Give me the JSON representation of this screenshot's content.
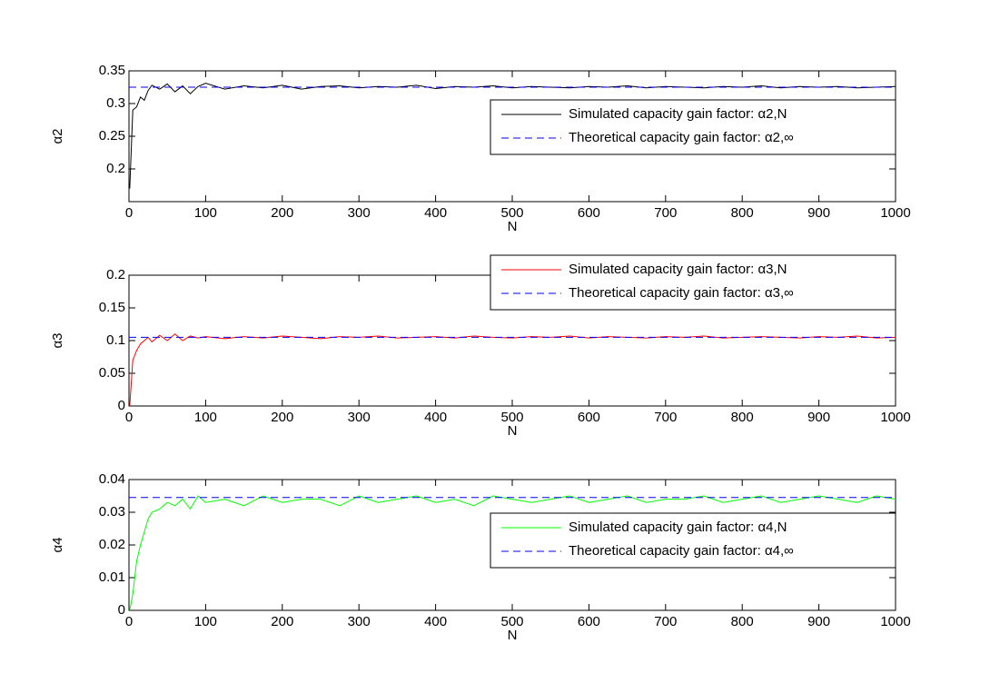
{
  "chart_data": [
    {
      "type": "line",
      "ylabel": "α2",
      "xlabel": "N",
      "legend": "upper right",
      "x": [
        1,
        5,
        10,
        15,
        20,
        25,
        30,
        40,
        50,
        60,
        70,
        80,
        90,
        100,
        125,
        150,
        175,
        200,
        225,
        250,
        275,
        300,
        325,
        350,
        375,
        400,
        425,
        450,
        475,
        500,
        525,
        550,
        575,
        600,
        625,
        650,
        675,
        700,
        725,
        750,
        775,
        800,
        825,
        850,
        875,
        900,
        925,
        950,
        975,
        1000
      ],
      "xlim": [
        0,
        1000
      ],
      "xticks": [
        0,
        100,
        200,
        300,
        400,
        500,
        600,
        700,
        800,
        900,
        1000
      ],
      "ylim": [
        0.15,
        0.35
      ],
      "yticks": [
        0.2,
        0.25,
        0.3,
        0.35
      ],
      "series": [
        {
          "name": "Simulated capacity gain factor: α2,N",
          "color": "#000000",
          "dash": false,
          "values": [
            0.17,
            0.29,
            0.295,
            0.31,
            0.305,
            0.32,
            0.328,
            0.322,
            0.33,
            0.318,
            0.327,
            0.315,
            0.326,
            0.331,
            0.322,
            0.327,
            0.324,
            0.328,
            0.322,
            0.326,
            0.327,
            0.324,
            0.326,
            0.325,
            0.328,
            0.323,
            0.326,
            0.325,
            0.327,
            0.324,
            0.326,
            0.325,
            0.324,
            0.326,
            0.325,
            0.327,
            0.324,
            0.326,
            0.325,
            0.324,
            0.326,
            0.325,
            0.327,
            0.324,
            0.326,
            0.325,
            0.326,
            0.324,
            0.325,
            0.326
          ]
        },
        {
          "name": "Theoretical capacity gain factor: α2,∞",
          "color": "#0000ff",
          "dash": true,
          "x": [
            0,
            1000
          ],
          "values": [
            0.325,
            0.325
          ]
        }
      ]
    },
    {
      "type": "line",
      "ylabel": "α3",
      "xlabel": "N",
      "legend": "upper right",
      "x": [
        1,
        5,
        10,
        15,
        20,
        25,
        30,
        40,
        50,
        60,
        70,
        80,
        90,
        100,
        125,
        150,
        175,
        200,
        225,
        250,
        275,
        300,
        325,
        350,
        375,
        400,
        425,
        450,
        475,
        500,
        525,
        550,
        575,
        600,
        625,
        650,
        675,
        700,
        725,
        750,
        775,
        800,
        825,
        850,
        875,
        900,
        925,
        950,
        975,
        1000
      ],
      "xlim": [
        0,
        1000
      ],
      "xticks": [
        0,
        100,
        200,
        300,
        400,
        500,
        600,
        700,
        800,
        900,
        1000
      ],
      "ylim": [
        0,
        0.2
      ],
      "yticks": [
        0,
        0.05,
        0.1,
        0.15,
        0.2
      ],
      "series": [
        {
          "name": "Simulated capacity gain factor: α3,N",
          "color": "#ff0000",
          "dash": false,
          "values": [
            0.0,
            0.07,
            0.085,
            0.095,
            0.1,
            0.105,
            0.098,
            0.108,
            0.1,
            0.11,
            0.1,
            0.107,
            0.104,
            0.106,
            0.103,
            0.106,
            0.104,
            0.107,
            0.105,
            0.103,
            0.106,
            0.105,
            0.107,
            0.104,
            0.105,
            0.106,
            0.104,
            0.107,
            0.105,
            0.104,
            0.106,
            0.105,
            0.107,
            0.104,
            0.106,
            0.105,
            0.104,
            0.106,
            0.105,
            0.107,
            0.104,
            0.105,
            0.106,
            0.105,
            0.104,
            0.106,
            0.105,
            0.107,
            0.104,
            0.105
          ]
        },
        {
          "name": "Theoretical capacity gain factor: α3,∞",
          "color": "#0000ff",
          "dash": true,
          "x": [
            0,
            1000
          ],
          "values": [
            0.105,
            0.105
          ]
        }
      ]
    },
    {
      "type": "line",
      "ylabel": "α4",
      "xlabel": "N",
      "legend": "upper right",
      "x": [
        1,
        5,
        10,
        15,
        20,
        25,
        30,
        40,
        50,
        60,
        70,
        80,
        90,
        100,
        125,
        150,
        175,
        200,
        225,
        250,
        275,
        300,
        325,
        350,
        375,
        400,
        425,
        450,
        475,
        500,
        525,
        550,
        575,
        600,
        625,
        650,
        675,
        700,
        725,
        750,
        775,
        800,
        825,
        850,
        875,
        900,
        925,
        950,
        975,
        1000
      ],
      "xlim": [
        0,
        1000
      ],
      "xticks": [
        0,
        100,
        200,
        300,
        400,
        500,
        600,
        700,
        800,
        900,
        1000
      ],
      "ylim": [
        0,
        0.04
      ],
      "yticks": [
        0,
        0.01,
        0.02,
        0.03,
        0.04
      ],
      "series": [
        {
          "name": "Simulated capacity gain factor: α4,N",
          "color": "#00ff00",
          "dash": false,
          "values": [
            0.0,
            0.005,
            0.015,
            0.02,
            0.024,
            0.028,
            0.03,
            0.031,
            0.033,
            0.032,
            0.034,
            0.031,
            0.035,
            0.033,
            0.034,
            0.032,
            0.035,
            0.033,
            0.034,
            0.034,
            0.032,
            0.035,
            0.033,
            0.034,
            0.035,
            0.033,
            0.034,
            0.032,
            0.035,
            0.034,
            0.033,
            0.034,
            0.035,
            0.033,
            0.034,
            0.035,
            0.033,
            0.034,
            0.034,
            0.035,
            0.033,
            0.034,
            0.035,
            0.033,
            0.034,
            0.035,
            0.034,
            0.033,
            0.035,
            0.034
          ]
        },
        {
          "name": "Theoretical capacity gain factor: α4,∞",
          "color": "#0000ff",
          "dash": true,
          "x": [
            0,
            1000
          ],
          "values": [
            0.0345,
            0.0345
          ]
        }
      ]
    }
  ]
}
